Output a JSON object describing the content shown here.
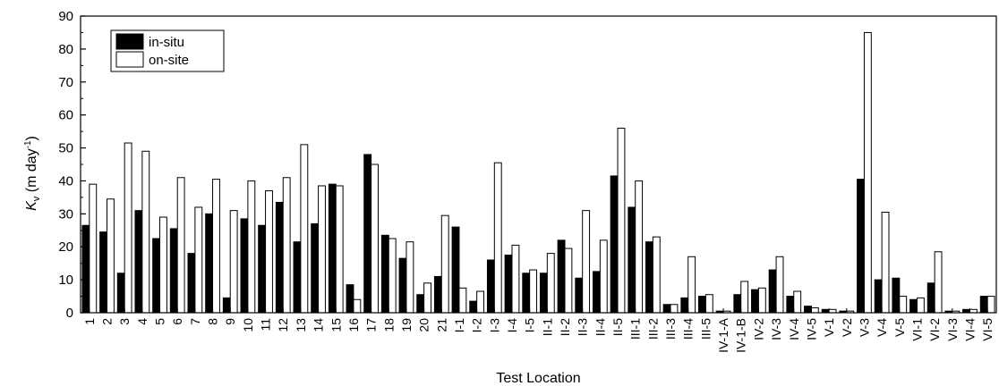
{
  "chart_data": {
    "type": "bar",
    "title": "",
    "xlabel": "Test Location",
    "ylabel": {
      "symbol": "K",
      "subscript": "v",
      "unit_prefix": " (m day",
      "unit_sup": "-1",
      "unit_suffix": ")"
    },
    "ylim": [
      0,
      90
    ],
    "yticks": [
      0,
      10,
      20,
      30,
      40,
      50,
      60,
      70,
      80,
      90
    ],
    "grid": false,
    "legend_position": "top-left",
    "categories": [
      "1",
      "2",
      "3",
      "4",
      "5",
      "6",
      "7",
      "8",
      "9",
      "10",
      "11",
      "12",
      "13",
      "14",
      "15",
      "16",
      "17",
      "18",
      "19",
      "20",
      "21",
      "I-1",
      "I-2",
      "I-3",
      "I-4",
      "I-5",
      "II-1",
      "II-2",
      "II-3",
      "II-4",
      "II-5",
      "III-1",
      "III-2",
      "III-3",
      "III-4",
      "III-5",
      "IV-1-A",
      "IV-1-B",
      "IV-2",
      "IV-3",
      "IV-4",
      "IV-5",
      "V-1",
      "V-2",
      "V-3",
      "V-4",
      "V-5",
      "VI-1",
      "VI-2",
      "VI-3",
      "VI-4",
      "VI-5"
    ],
    "series": [
      {
        "name": "in-situ",
        "color": "#000000",
        "values": [
          26.5,
          24.5,
          12,
          31,
          22.5,
          25.5,
          18,
          30,
          4.5,
          28.5,
          26.5,
          33.5,
          21.5,
          27,
          39,
          8.5,
          48,
          23.5,
          16.5,
          5.5,
          11,
          26,
          3.5,
          16,
          17.5,
          12,
          12,
          22,
          10.5,
          12.5,
          41.5,
          32,
          21.5,
          2.5,
          4.5,
          5,
          0.5,
          5.5,
          7,
          13,
          5,
          2,
          1,
          0.5,
          40.5,
          10,
          10.5,
          4,
          9,
          0.5,
          1,
          5
        ]
      },
      {
        "name": "on-site",
        "color": "#ffffff",
        "values": [
          39,
          34.5,
          51.5,
          49,
          29,
          41,
          32,
          40.5,
          31,
          40,
          37,
          41,
          51,
          38.5,
          38.5,
          4,
          45,
          22.5,
          21.5,
          9,
          29.5,
          7.5,
          6.5,
          45.5,
          20.5,
          13,
          18,
          19.5,
          31,
          22,
          56,
          40,
          23,
          2.5,
          17,
          5.5,
          0.5,
          9.5,
          7.5,
          17,
          6.5,
          1.5,
          1,
          0.5,
          85,
          30.5,
          5,
          4.5,
          18.5,
          0.5,
          1,
          5
        ]
      }
    ]
  }
}
